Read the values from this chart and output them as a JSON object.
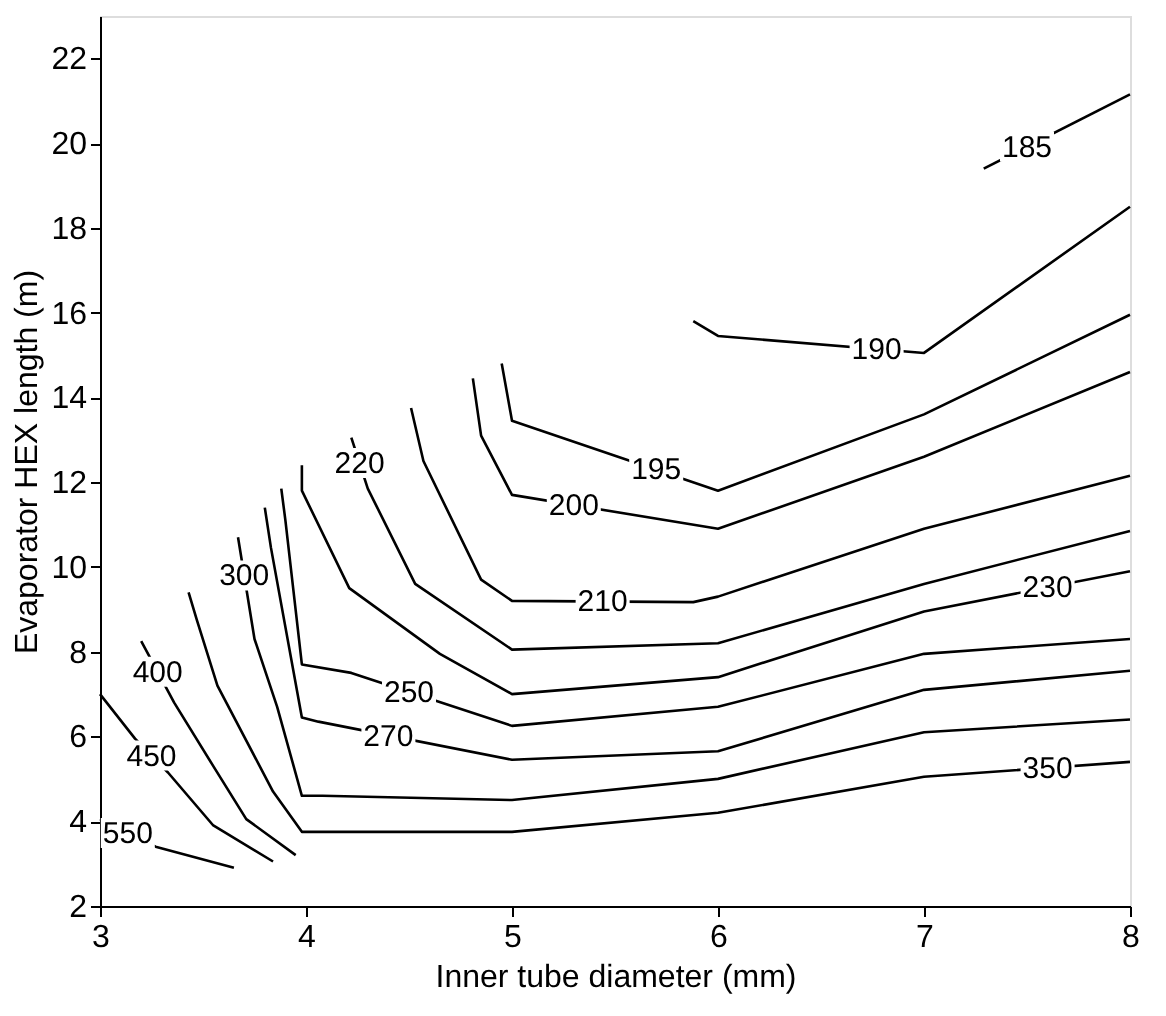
{
  "chart_data": {
    "type": "line",
    "xlabel": "Inner tube diameter (mm)",
    "ylabel": "Evaporator HEX length (m)",
    "xlim": [
      3,
      8
    ],
    "ylim": [
      2,
      23
    ],
    "xticks": [
      3,
      4,
      5,
      6,
      7,
      8
    ],
    "yticks": [
      2,
      4,
      6,
      8,
      10,
      12,
      14,
      16,
      18,
      20,
      22
    ],
    "grid": false,
    "legend": false,
    "marker": "none",
    "line_style": "solid",
    "series": [
      {
        "color": "#000000",
        "x": [
          7.29,
          8
        ],
        "values": [
          19.4,
          21.15
        ]
      },
      {
        "color": "#000000",
        "x": [
          5.88,
          6,
          7,
          8
        ],
        "values": [
          15.8,
          15.45,
          15.05,
          18.5
        ]
      },
      {
        "color": "#000000",
        "x": [
          4.95,
          5,
          6,
          7,
          8
        ],
        "values": [
          14.8,
          13.45,
          11.8,
          13.6,
          15.95
        ]
      },
      {
        "color": "#000000",
        "x": [
          4.81,
          4.85,
          5,
          6,
          7,
          8
        ],
        "values": [
          14.45,
          13.1,
          11.7,
          10.9,
          12.6,
          14.6
        ]
      },
      {
        "color": "#000000",
        "x": [
          4.51,
          4.57,
          4.85,
          5,
          5.88,
          6,
          7,
          8
        ],
        "values": [
          13.75,
          12.5,
          9.7,
          9.2,
          9.17,
          9.3,
          10.9,
          12.15
        ]
      },
      {
        "color": "#000000",
        "x": [
          4.22,
          4.3,
          4.53,
          5,
          6,
          7,
          8
        ],
        "values": [
          13.05,
          11.85,
          9.6,
          8.05,
          8.2,
          9.6,
          10.85
        ]
      },
      {
        "color": "#000000",
        "x": [
          3.98,
          3.98,
          4.21,
          4.65,
          5,
          6,
          7,
          8
        ],
        "values": [
          12.4,
          11.8,
          9.5,
          7.95,
          7.0,
          7.4,
          8.95,
          9.9
        ]
      },
      {
        "color": "#000000",
        "x": [
          3.88,
          3.9,
          3.98,
          4.22,
          5,
          6,
          7,
          8
        ],
        "values": [
          11.85,
          11.1,
          7.7,
          7.5,
          6.25,
          6.7,
          7.95,
          8.3
        ]
      },
      {
        "color": "#000000",
        "x": [
          3.8,
          3.83,
          3.98,
          4.06,
          5,
          6,
          7,
          8
        ],
        "values": [
          11.4,
          10.45,
          6.45,
          6.35,
          5.45,
          5.65,
          7.1,
          7.55
        ]
      },
      {
        "color": "#000000",
        "x": [
          3.67,
          3.75,
          3.86,
          3.98,
          4.08,
          5,
          6,
          7,
          8
        ],
        "values": [
          10.7,
          8.3,
          6.7,
          4.6,
          4.6,
          4.5,
          5.0,
          6.1,
          6.4
        ]
      },
      {
        "color": "#000000",
        "x": [
          3.43,
          3.47,
          3.57,
          3.84,
          3.98,
          5,
          6,
          7,
          8
        ],
        "values": [
          9.4,
          8.75,
          7.2,
          4.7,
          3.75,
          3.75,
          4.2,
          5.05,
          5.4
        ]
      },
      {
        "color": "#000000",
        "x": [
          3.2,
          3.36,
          3.55,
          3.71,
          3.95
        ],
        "values": [
          8.25,
          6.8,
          5.3,
          4.05,
          3.2
        ]
      },
      {
        "color": "#000000",
        "x": [
          3.0,
          3.17,
          3.33,
          3.55,
          3.84
        ],
        "values": [
          7.0,
          5.95,
          5.15,
          3.9,
          3.05
        ]
      },
      {
        "color": "#000000",
        "x": [
          3.0,
          3.27,
          3.65
        ],
        "values": [
          4.05,
          3.4,
          2.9
        ]
      }
    ],
    "annotations": [
      {
        "text": "185",
        "x": 7.5,
        "y": 19.92
      },
      {
        "text": "190",
        "x": 6.77,
        "y": 15.14
      },
      {
        "text": "195",
        "x": 5.7,
        "y": 12.3
      },
      {
        "text": "200",
        "x": 5.3,
        "y": 11.46
      },
      {
        "text": "210",
        "x": 5.44,
        "y": 9.19
      },
      {
        "text": "220",
        "x": 4.26,
        "y": 12.45
      },
      {
        "text": "230",
        "x": 7.6,
        "y": 9.52
      },
      {
        "text": "250",
        "x": 4.5,
        "y": 7.05
      },
      {
        "text": "270",
        "x": 4.4,
        "y": 6.02
      },
      {
        "text": "300",
        "x": 3.7,
        "y": 9.8
      },
      {
        "text": "350",
        "x": 7.6,
        "y": 5.26
      },
      {
        "text": "400",
        "x": 3.28,
        "y": 7.53
      },
      {
        "text": "450",
        "x": 3.25,
        "y": 5.55
      },
      {
        "text": "550",
        "x": 3.135,
        "y": 3.725
      }
    ]
  }
}
